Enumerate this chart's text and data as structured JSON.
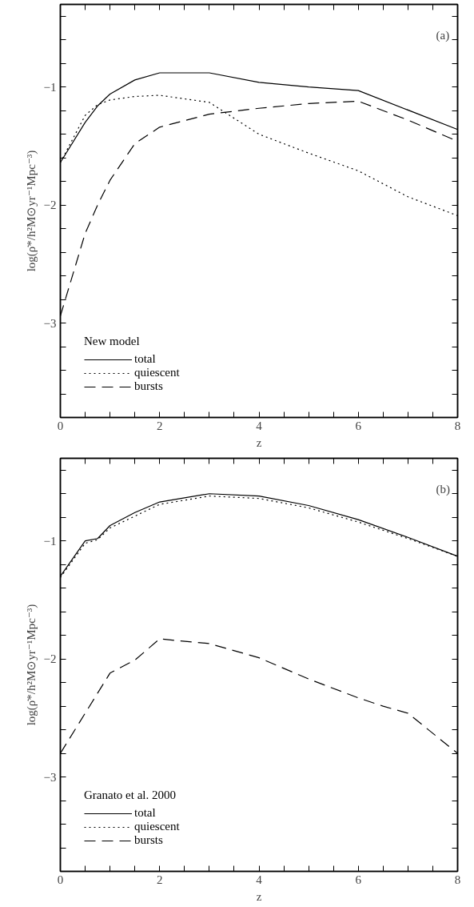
{
  "chart_data": [
    {
      "type": "line",
      "annotations": [
        "(a)"
      ],
      "xlabel": "z",
      "ylabel": "log(ρ̇*/h²M⊙yr⁻¹Mpc⁻³)",
      "legend_title": "New model",
      "legend": "bottom left",
      "grid": false,
      "xlim": [
        0,
        8
      ],
      "ylim": [
        -3.8,
        -0.3
      ],
      "xticks": [
        0,
        {
          "value": 0.5,
          "label": null
        },
        {
          "value": 1,
          "label": null
        },
        {
          "value": 1.5,
          "label": null
        },
        2,
        {
          "value": 2.5,
          "label": null
        },
        {
          "value": 3,
          "label": null
        },
        {
          "value": 3.5,
          "label": null
        },
        4,
        {
          "value": 4.5,
          "label": null
        },
        {
          "value": 5,
          "label": null
        },
        {
          "value": 5.5,
          "label": null
        },
        6,
        {
          "value": 6.5,
          "label": null
        },
        {
          "value": 7,
          "label": null
        },
        {
          "value": 7.5,
          "label": null
        },
        8
      ],
      "yticks": [
        {
          "value": -3.6,
          "label": null
        },
        {
          "value": -3.4,
          "label": null
        },
        {
          "value": -3.2,
          "label": null
        },
        {
          "value": -3,
          "label": "−3"
        },
        {
          "value": -2.8,
          "label": null
        },
        {
          "value": -2.6,
          "label": null
        },
        {
          "value": -2.4,
          "label": null
        },
        {
          "value": -2.2,
          "label": null
        },
        {
          "value": -2,
          "label": "−2"
        },
        {
          "value": -1.8,
          "label": null
        },
        {
          "value": -1.6,
          "label": null
        },
        {
          "value": -1.4,
          "label": null
        },
        {
          "value": -1.2,
          "label": null
        },
        {
          "value": -1,
          "label": "−1"
        },
        {
          "value": -0.8,
          "label": null
        },
        {
          "value": -0.6,
          "label": null
        },
        {
          "value": -0.4,
          "label": null
        }
      ],
      "series": [
        {
          "name": "total",
          "color": "#000000",
          "line_style": "solid",
          "x": [
            0,
            0.5,
            0.75,
            1,
            1.5,
            2,
            3,
            4,
            5,
            6,
            8
          ],
          "values": [
            -1.64,
            -1.3,
            -1.16,
            -1.06,
            -0.94,
            -0.88,
            -0.88,
            -0.96,
            -1.0,
            -1.03,
            -1.36
          ]
        },
        {
          "name": "quiescent",
          "color": "#000000",
          "line_style": "dotted",
          "x": [
            0,
            0.5,
            0.75,
            1,
            1.5,
            2,
            3,
            4,
            5,
            6,
            7,
            8
          ],
          "values": [
            -1.64,
            -1.24,
            -1.15,
            -1.11,
            -1.08,
            -1.07,
            -1.13,
            -1.4,
            -1.56,
            -1.71,
            -1.93,
            -2.09
          ]
        },
        {
          "name": "bursts",
          "color": "#000000",
          "line_style": "dashed",
          "x": [
            0,
            0.5,
            0.75,
            1,
            1.5,
            2,
            3,
            4,
            5,
            6,
            7,
            8
          ],
          "values": [
            -2.94,
            -2.24,
            -2.0,
            -1.79,
            -1.48,
            -1.34,
            -1.23,
            -1.18,
            -1.14,
            -1.12,
            -1.28,
            -1.46
          ]
        }
      ]
    },
    {
      "type": "line",
      "annotations": [
        "(b)"
      ],
      "xlabel": "z",
      "ylabel": "log(ρ̇*/h²M⊙yr⁻¹Mpc⁻³)",
      "legend_title": "Granato et al. 2000",
      "legend": "bottom left",
      "grid": false,
      "xlim": [
        0,
        8
      ],
      "ylim": [
        -3.8,
        -0.3
      ],
      "xticks": [
        0,
        {
          "value": 0.5,
          "label": null
        },
        {
          "value": 1,
          "label": null
        },
        {
          "value": 1.5,
          "label": null
        },
        2,
        {
          "value": 2.5,
          "label": null
        },
        {
          "value": 3,
          "label": null
        },
        {
          "value": 3.5,
          "label": null
        },
        4,
        {
          "value": 4.5,
          "label": null
        },
        {
          "value": 5,
          "label": null
        },
        {
          "value": 5.5,
          "label": null
        },
        6,
        {
          "value": 6.5,
          "label": null
        },
        {
          "value": 7,
          "label": null
        },
        {
          "value": 7.5,
          "label": null
        },
        8
      ],
      "yticks": [
        {
          "value": -3.6,
          "label": null
        },
        {
          "value": -3.4,
          "label": null
        },
        {
          "value": -3.2,
          "label": null
        },
        {
          "value": -3,
          "label": "−3"
        },
        {
          "value": -2.8,
          "label": null
        },
        {
          "value": -2.6,
          "label": null
        },
        {
          "value": -2.4,
          "label": null
        },
        {
          "value": -2.2,
          "label": null
        },
        {
          "value": -2,
          "label": "−2"
        },
        {
          "value": -1.8,
          "label": null
        },
        {
          "value": -1.6,
          "label": null
        },
        {
          "value": -1.4,
          "label": null
        },
        {
          "value": -1.2,
          "label": null
        },
        {
          "value": -1,
          "label": "−1"
        },
        {
          "value": -0.8,
          "label": null
        },
        {
          "value": -0.6,
          "label": null
        },
        {
          "value": -0.4,
          "label": null
        }
      ],
      "series": [
        {
          "name": "total",
          "color": "#000000",
          "line_style": "solid",
          "x": [
            0,
            0.5,
            0.75,
            1,
            1.5,
            2,
            3,
            4,
            5,
            6,
            7,
            8
          ],
          "values": [
            -1.3,
            -1.0,
            -0.98,
            -0.87,
            -0.76,
            -0.67,
            -0.6,
            -0.62,
            -0.7,
            -0.82,
            -0.97,
            -1.13
          ]
        },
        {
          "name": "quiescent",
          "color": "#000000",
          "line_style": "dotted",
          "x": [
            0,
            0.5,
            0.75,
            1,
            1.5,
            2,
            3,
            4,
            5,
            6,
            7,
            8
          ],
          "values": [
            -1.31,
            -1.02,
            -0.99,
            -0.89,
            -0.79,
            -0.69,
            -0.62,
            -0.64,
            -0.72,
            -0.84,
            -0.98,
            -1.13
          ]
        },
        {
          "name": "bursts",
          "color": "#000000",
          "line_style": "dashed",
          "x": [
            0,
            0.75,
            1,
            1.5,
            2,
            3,
            4,
            5,
            6,
            6.5,
            7,
            8
          ],
          "values": [
            -2.8,
            -2.29,
            -2.12,
            -2.01,
            -1.83,
            -1.87,
            -1.99,
            -2.17,
            -2.33,
            -2.4,
            -2.46,
            -2.8
          ]
        }
      ]
    }
  ]
}
